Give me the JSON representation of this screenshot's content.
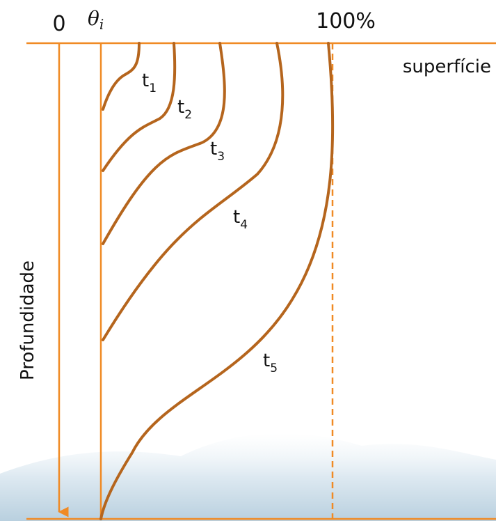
{
  "axis": {
    "origin": "0",
    "initial": {
      "symbol": "θ",
      "subscript": "i"
    },
    "max": "100%",
    "surface": "superfície",
    "depth": "Profundidade"
  },
  "curves": [
    {
      "label": {
        "base": "t",
        "subscript": "1"
      }
    },
    {
      "label": {
        "base": "t",
        "subscript": "2"
      }
    },
    {
      "label": {
        "base": "t",
        "subscript": "3"
      }
    },
    {
      "label": {
        "base": "t",
        "subscript": "4"
      }
    },
    {
      "label": {
        "base": "t",
        "subscript": "5"
      }
    }
  ]
}
